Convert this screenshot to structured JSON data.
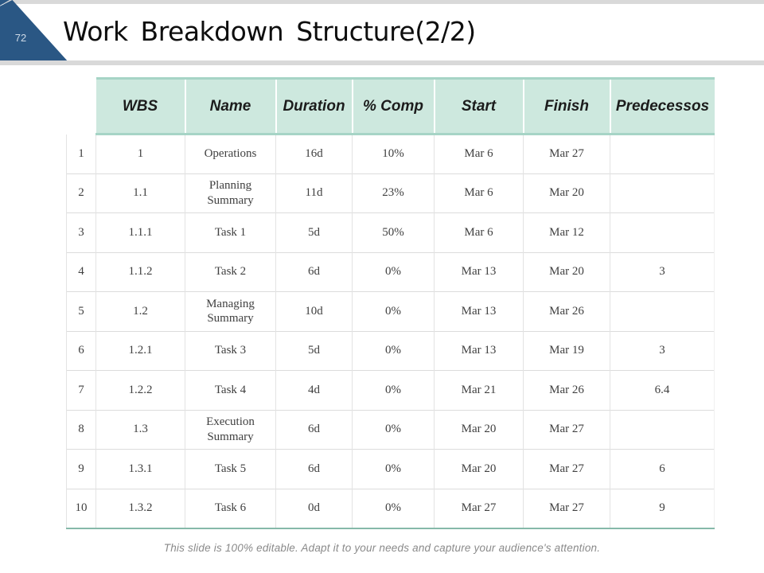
{
  "slide": {
    "page_number": "72",
    "title": "Work Breakdown Structure(2/2)",
    "footer": "This slide is 100% editable. Adapt it to your needs and capture your audience's attention."
  },
  "colors": {
    "navy": "#2a5784",
    "stripe_gray": "#d9d9d9",
    "header_mint": "#cde8de",
    "accent_teal": "#a6d4c6",
    "table_bottom_teal": "#86b9a9"
  },
  "table": {
    "columns": [
      "WBS",
      "Name",
      "Duration",
      "% Comp",
      "Start",
      "Finish",
      "Predecessos"
    ],
    "cell_keys": [
      "num",
      "wbs",
      "name",
      "duration",
      "comp",
      "start",
      "finish",
      "pred"
    ],
    "rows": [
      {
        "num": "1",
        "wbs": "1",
        "name": "Operations",
        "duration": "16d",
        "comp": "10%",
        "start": "Mar 6",
        "finish": "Mar 27",
        "pred": ""
      },
      {
        "num": "2",
        "wbs": "1.1",
        "name": "Planning Summary",
        "duration": "11d",
        "comp": "23%",
        "start": "Mar 6",
        "finish": "Mar 20",
        "pred": ""
      },
      {
        "num": "3",
        "wbs": "1.1.1",
        "name": "Task 1",
        "duration": "5d",
        "comp": "50%",
        "start": "Mar 6",
        "finish": "Mar 12",
        "pred": ""
      },
      {
        "num": "4",
        "wbs": "1.1.2",
        "name": "Task 2",
        "duration": "6d",
        "comp": "0%",
        "start": "Mar 13",
        "finish": "Mar 20",
        "pred": "3"
      },
      {
        "num": "5",
        "wbs": "1.2",
        "name": "Managing Summary",
        "duration": "10d",
        "comp": "0%",
        "start": "Mar 13",
        "finish": "Mar 26",
        "pred": ""
      },
      {
        "num": "6",
        "wbs": "1.2.1",
        "name": "Task 3",
        "duration": "5d",
        "comp": "0%",
        "start": "Mar 13",
        "finish": "Mar 19",
        "pred": "3"
      },
      {
        "num": "7",
        "wbs": "1.2.2",
        "name": "Task 4",
        "duration": "4d",
        "comp": "0%",
        "start": "Mar 21",
        "finish": "Mar 26",
        "pred": "6.4"
      },
      {
        "num": "8",
        "wbs": "1.3",
        "name": "Execution Summary",
        "duration": "6d",
        "comp": "0%",
        "start": "Mar 20",
        "finish": "Mar 27",
        "pred": ""
      },
      {
        "num": "9",
        "wbs": "1.3.1",
        "name": "Task 5",
        "duration": "6d",
        "comp": "0%",
        "start": "Mar 20",
        "finish": "Mar 27",
        "pred": "6"
      },
      {
        "num": "10",
        "wbs": "1.3.2",
        "name": "Task 6",
        "duration": "0d",
        "comp": "0%",
        "start": "Mar 27",
        "finish": "Mar 27",
        "pred": "9"
      }
    ]
  }
}
